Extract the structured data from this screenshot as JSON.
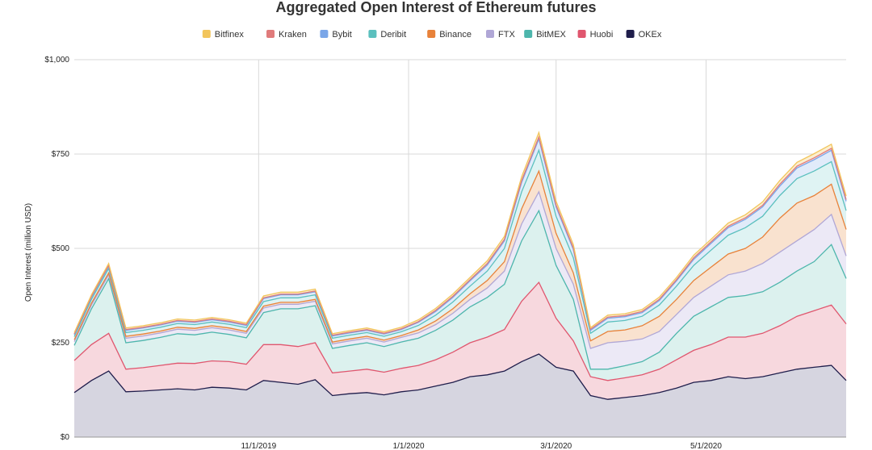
{
  "chart_data": {
    "type": "area",
    "stacked": true,
    "title": "Aggregated Open Interest of Ethereum futures",
    "ylabel": "Open Interest (million USD)",
    "xlabel": "",
    "ylim": [
      0,
      1000
    ],
    "yticks": [
      {
        "value": 0,
        "label": "$0"
      },
      {
        "value": 250,
        "label": "$250"
      },
      {
        "value": 500,
        "label": "$500"
      },
      {
        "value": 750,
        "label": "$750"
      },
      {
        "value": 1000,
        "label": "$1,000"
      }
    ],
    "xlim": [
      "2019-08-18",
      "2020-06-27"
    ],
    "xticks": [
      {
        "value": "2019-11-01",
        "label": "11/1/2019"
      },
      {
        "value": "2020-01-01",
        "label": "1/1/2020"
      },
      {
        "value": "2020-03-01",
        "label": "3/1/2020"
      },
      {
        "value": "2020-05-01",
        "label": "5/1/2020"
      }
    ],
    "grid": true,
    "legend_position": "top",
    "x": [
      "2019-08-18",
      "2019-08-25",
      "2019-09-01",
      "2019-09-08",
      "2019-09-15",
      "2019-09-22",
      "2019-09-29",
      "2019-10-06",
      "2019-10-13",
      "2019-10-20",
      "2019-10-27",
      "2019-11-03",
      "2019-11-10",
      "2019-11-17",
      "2019-11-24",
      "2019-12-01",
      "2019-12-08",
      "2019-12-15",
      "2019-12-22",
      "2019-12-29",
      "2020-01-05",
      "2020-01-12",
      "2020-01-19",
      "2020-01-26",
      "2020-02-02",
      "2020-02-09",
      "2020-02-16",
      "2020-02-23",
      "2020-03-01",
      "2020-03-08",
      "2020-03-15",
      "2020-03-22",
      "2020-03-29",
      "2020-04-05",
      "2020-04-12",
      "2020-04-19",
      "2020-04-26",
      "2020-05-03",
      "2020-05-10",
      "2020-05-17",
      "2020-05-24",
      "2020-05-31",
      "2020-06-07",
      "2020-06-14",
      "2020-06-21",
      "2020-06-27"
    ],
    "series": [
      {
        "name": "OKEx",
        "color": "#1f1d4b",
        "fill": "#d6d5e0",
        "values": [
          118,
          150,
          175,
          120,
          122,
          125,
          128,
          125,
          132,
          130,
          125,
          150,
          145,
          140,
          152,
          110,
          115,
          118,
          112,
          120,
          125,
          135,
          145,
          160,
          165,
          175,
          200,
          220,
          185,
          175,
          110,
          100,
          105,
          110,
          118,
          130,
          145,
          150,
          160,
          155,
          160,
          170,
          180,
          185,
          190,
          150
        ]
      },
      {
        "name": "Huobi",
        "color": "#e0566e",
        "fill": "#f7d8de",
        "values": [
          85,
          95,
          100,
          60,
          62,
          65,
          68,
          70,
          70,
          70,
          68,
          95,
          100,
          100,
          98,
          60,
          60,
          62,
          60,
          62,
          65,
          70,
          80,
          90,
          100,
          110,
          160,
          190,
          130,
          80,
          50,
          50,
          52,
          55,
          62,
          75,
          85,
          95,
          105,
          110,
          115,
          125,
          140,
          150,
          160,
          150
        ]
      },
      {
        "name": "BitMEX",
        "color": "#4db6ac",
        "fill": "#dcf1ee",
        "values": [
          40,
          95,
          145,
          70,
          72,
          74,
          78,
          76,
          76,
          72,
          70,
          85,
          95,
          100,
          98,
          65,
          68,
          70,
          68,
          70,
          72,
          78,
          85,
          95,
          105,
          120,
          160,
          190,
          140,
          110,
          20,
          30,
          32,
          35,
          45,
          70,
          90,
          100,
          105,
          110,
          110,
          115,
          120,
          130,
          160,
          120
        ]
      },
      {
        "name": "FTX",
        "color": "#b0a7d6",
        "fill": "#ece9f6",
        "values": [
          10,
          10,
          10,
          12,
          12,
          12,
          12,
          12,
          12,
          12,
          12,
          12,
          12,
          12,
          12,
          12,
          12,
          12,
          12,
          12,
          14,
          15,
          18,
          20,
          25,
          35,
          45,
          50,
          45,
          40,
          55,
          70,
          65,
          60,
          55,
          50,
          50,
          55,
          60,
          65,
          75,
          80,
          80,
          85,
          80,
          60
        ]
      },
      {
        "name": "Binance",
        "color": "#e8823a",
        "fill": "#f9e2cf",
        "values": [
          5,
          5,
          5,
          5,
          5,
          5,
          5,
          5,
          5,
          5,
          5,
          5,
          5,
          5,
          5,
          5,
          5,
          5,
          5,
          5,
          8,
          10,
          12,
          15,
          20,
          25,
          40,
          55,
          40,
          30,
          20,
          30,
          30,
          35,
          40,
          40,
          45,
          50,
          55,
          60,
          70,
          90,
          100,
          90,
          80,
          70
        ]
      },
      {
        "name": "Deribit",
        "color": "#5bc0be",
        "fill": "#dff3f3",
        "values": [
          8,
          10,
          12,
          10,
          10,
          10,
          10,
          10,
          10,
          10,
          10,
          12,
          12,
          12,
          12,
          10,
          10,
          10,
          10,
          10,
          12,
          15,
          18,
          20,
          25,
          35,
          45,
          55,
          45,
          40,
          20,
          25,
          25,
          25,
          30,
          35,
          40,
          45,
          50,
          55,
          55,
          60,
          65,
          65,
          60,
          50
        ]
      },
      {
        "name": "Bybit",
        "color": "#7aa6e8",
        "fill": "#e1ebfa",
        "values": [
          5,
          6,
          6,
          6,
          6,
          6,
          6,
          6,
          6,
          6,
          6,
          8,
          8,
          8,
          8,
          6,
          6,
          6,
          6,
          6,
          8,
          10,
          12,
          14,
          16,
          20,
          25,
          30,
          25,
          22,
          8,
          10,
          10,
          10,
          12,
          14,
          16,
          18,
          20,
          22,
          25,
          25,
          28,
          30,
          30,
          25
        ]
      },
      {
        "name": "Kraken",
        "color": "#e07b7b",
        "fill": "#f8dddd",
        "values": [
          2,
          2,
          2,
          2,
          2,
          2,
          2,
          2,
          2,
          2,
          2,
          2,
          2,
          2,
          2,
          2,
          2,
          2,
          2,
          2,
          2,
          3,
          3,
          3,
          4,
          4,
          5,
          5,
          5,
          4,
          3,
          3,
          3,
          3,
          3,
          3,
          4,
          4,
          4,
          4,
          4,
          5,
          5,
          5,
          5,
          4
        ]
      },
      {
        "name": "Bitfinex",
        "color": "#f2c55c",
        "fill": "#fbefd0",
        "values": [
          4,
          4,
          5,
          4,
          4,
          4,
          4,
          4,
          4,
          4,
          4,
          5,
          5,
          5,
          5,
          4,
          4,
          4,
          4,
          4,
          5,
          5,
          6,
          6,
          7,
          8,
          10,
          12,
          10,
          9,
          4,
          5,
          5,
          5,
          6,
          6,
          7,
          7,
          8,
          8,
          9,
          10,
          10,
          11,
          11,
          10
        ]
      }
    ]
  }
}
